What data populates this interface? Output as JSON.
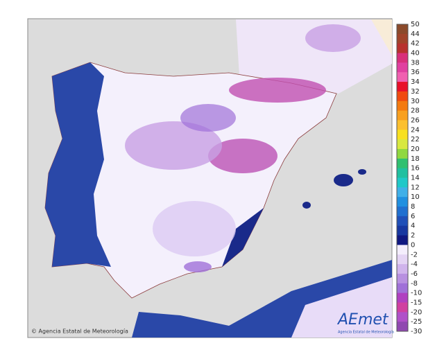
{
  "map": {
    "credit": "© Agencia Estatal de Meteorología",
    "logo": {
      "name": "AEmet",
      "subtitle": "Agencia Estatal de Meteorología"
    },
    "legend": {
      "labels": [
        50,
        44,
        42,
        40,
        38,
        36,
        34,
        32,
        30,
        28,
        26,
        24,
        22,
        20,
        18,
        16,
        14,
        12,
        10,
        8,
        6,
        4,
        2,
        0,
        -2,
        -4,
        -6,
        -8,
        -10,
        -15,
        -20,
        -25,
        -30
      ],
      "colors": [
        "#8b4a2b",
        "#a0442a",
        "#b8322e",
        "#d8307a",
        "#e040a0",
        "#f060b0",
        "#e8102a",
        "#f04a10",
        "#f47a10",
        "#f8a020",
        "#fcc030",
        "#f8e020",
        "#d8e840",
        "#90d840",
        "#30c070",
        "#20c0a0",
        "#20c8c8",
        "#40b0e8",
        "#2090e0",
        "#2070d0",
        "#2050b8",
        "#1838a0",
        "#101880",
        "#f4eefc",
        "#e4d4f4",
        "#d0b4ec",
        "#b890e0",
        "#a070d8",
        "#b040c0",
        "#d040a0",
        "#b050c8",
        "#9048b0"
      ]
    }
  }
}
